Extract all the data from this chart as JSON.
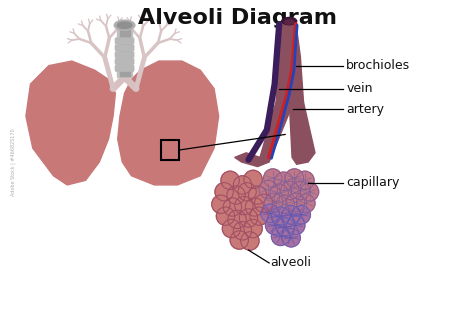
{
  "title": "Alveoli Diagram",
  "title_fontsize": 16,
  "title_fontweight": "bold",
  "background_color": "#ffffff",
  "lung_color": "#c97878",
  "bronchi_color": "#d8c0c0",
  "trachea_color": "#b0b0b0",
  "bronchiole_color": "#8B5060",
  "vein_color": "#4a2555",
  "artery_color": "#cc2222",
  "blue_vessel_color": "#2244bb",
  "alveoli_color": "#c97878",
  "alveoli_cap_color": "#c08090",
  "capillary_color": "#8080cc",
  "label_color": "#111111",
  "label_fontsize": 9,
  "labels": {
    "brochioles": "brochioles",
    "vein": "vein",
    "artery": "artery",
    "capillary": "capillary",
    "alveoli": "alveoli"
  }
}
